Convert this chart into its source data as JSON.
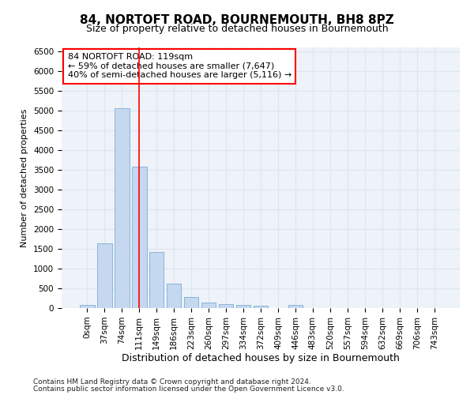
{
  "title": "84, NORTOFT ROAD, BOURNEMOUTH, BH8 8PZ",
  "subtitle": "Size of property relative to detached houses in Bournemouth",
  "xlabel": "Distribution of detached houses by size in Bournemouth",
  "ylabel": "Number of detached properties",
  "footnote1": "Contains HM Land Registry data © Crown copyright and database right 2024.",
  "footnote2": "Contains public sector information licensed under the Open Government Licence v3.0.",
  "bar_labels": [
    "0sqm",
    "37sqm",
    "74sqm",
    "111sqm",
    "149sqm",
    "186sqm",
    "223sqm",
    "260sqm",
    "297sqm",
    "334sqm",
    "372sqm",
    "409sqm",
    "446sqm",
    "483sqm",
    "520sqm",
    "557sqm",
    "594sqm",
    "632sqm",
    "669sqm",
    "706sqm",
    "743sqm"
  ],
  "bar_values": [
    75,
    1650,
    5070,
    3590,
    1420,
    620,
    290,
    145,
    110,
    75,
    55,
    0,
    75,
    0,
    0,
    0,
    0,
    0,
    0,
    0,
    0
  ],
  "bar_color": "#c5d8ef",
  "bar_edge_color": "#7aadd4",
  "ylim": [
    0,
    6600
  ],
  "yticks": [
    0,
    500,
    1000,
    1500,
    2000,
    2500,
    3000,
    3500,
    4000,
    4500,
    5000,
    5500,
    6000,
    6500
  ],
  "vline_x": 3.0,
  "vline_color": "red",
  "annotation_box_text": "84 NORTOFT ROAD: 119sqm\n← 59% of detached houses are smaller (7,647)\n40% of semi-detached houses are larger (5,116) →",
  "grid_color": "#dce6f0",
  "background_color": "#eef2f9",
  "title_fontsize": 11,
  "subtitle_fontsize": 9,
  "ylabel_fontsize": 8,
  "xlabel_fontsize": 9,
  "tick_fontsize": 7.5
}
